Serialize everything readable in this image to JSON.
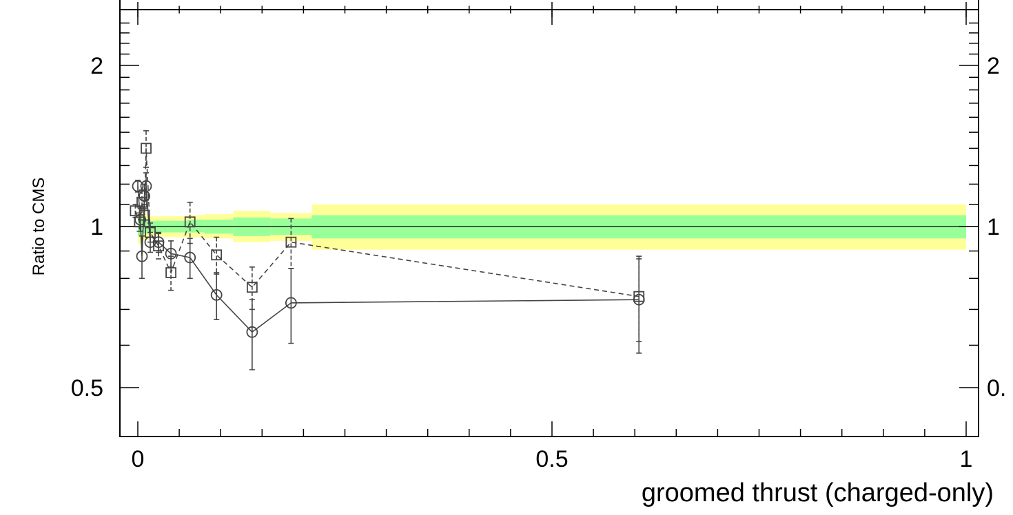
{
  "chart_data": {
    "type": "scatter",
    "xlabel": "groomed thrust (charged-only)",
    "ylabel": "Ratio to CMS",
    "xlim": [
      -0.02,
      1.0
    ],
    "ylim": [
      0.4,
      2.4
    ],
    "y_scale": "log",
    "x_ticks": [
      0,
      0.5,
      1
    ],
    "x_tick_labels": [
      "0",
      "0.5",
      "1"
    ],
    "y_ticks": [
      0.5,
      1,
      2
    ],
    "y_tick_labels": [
      "0.5",
      "1",
      "2"
    ],
    "right_axis_tick_labels": [
      "2",
      "1",
      "0."
    ],
    "reference_line": 1.0,
    "colors": {
      "band_inner": "#99ff99",
      "band_outer": "#ffff99",
      "series": "#444444",
      "axis": "#000000"
    },
    "bands": [
      {
        "x0": 0.0,
        "x1": 0.005,
        "inner": [
          0.96,
          1.04
        ],
        "outer": [
          0.93,
          1.07
        ]
      },
      {
        "x0": 0.005,
        "x1": 0.015,
        "inner": [
          0.97,
          1.03
        ],
        "outer": [
          0.945,
          1.055
        ]
      },
      {
        "x0": 0.015,
        "x1": 0.03,
        "inner": [
          0.975,
          1.025
        ],
        "outer": [
          0.96,
          1.045
        ]
      },
      {
        "x0": 0.03,
        "x1": 0.06,
        "inner": [
          0.975,
          1.025
        ],
        "outer": [
          0.955,
          1.045
        ]
      },
      {
        "x0": 0.06,
        "x1": 0.08,
        "inner": [
          0.975,
          1.03
        ],
        "outer": [
          0.955,
          1.05
        ]
      },
      {
        "x0": 0.08,
        "x1": 0.115,
        "inner": [
          0.97,
          1.03
        ],
        "outer": [
          0.95,
          1.055
        ]
      },
      {
        "x0": 0.115,
        "x1": 0.16,
        "inner": [
          0.96,
          1.04
        ],
        "outer": [
          0.935,
          1.07
        ]
      },
      {
        "x0": 0.16,
        "x1": 0.21,
        "inner": [
          0.965,
          1.035
        ],
        "outer": [
          0.94,
          1.06
        ]
      },
      {
        "x0": 0.21,
        "x1": 1.0,
        "inner": [
          0.95,
          1.05
        ],
        "outer": [
          0.905,
          1.1
        ]
      }
    ],
    "series": [
      {
        "marker": "circle",
        "line": "solid",
        "x": [
          0.0,
          0.003,
          0.005,
          0.008,
          0.01,
          0.015,
          0.025,
          0.04,
          0.063,
          0.095,
          0.138,
          0.185,
          0.605
        ],
        "y": [
          1.19,
          1.03,
          0.88,
          1.14,
          1.19,
          0.935,
          0.935,
          0.89,
          0.875,
          0.745,
          0.635,
          0.72,
          0.73
        ],
        "err": [
          0.03,
          0.05,
          0.08,
          0.06,
          0.07,
          0.04,
          0.04,
          0.05,
          0.075,
          0.075,
          0.095,
          0.115,
          0.15
        ]
      },
      {
        "marker": "square",
        "line": "dashed",
        "x": [
          -0.003,
          0.002,
          0.005,
          0.008,
          0.01,
          0.015,
          0.025,
          0.04,
          0.063,
          0.095,
          0.138,
          0.185,
          0.605
        ],
        "y": [
          1.07,
          1.02,
          1.11,
          1.05,
          1.4,
          0.975,
          0.92,
          0.82,
          1.02,
          0.885,
          0.77,
          0.935,
          0.74
        ],
        "err": [
          0.03,
          0.04,
          0.06,
          0.05,
          0.11,
          0.04,
          0.05,
          0.06,
          0.09,
          0.07,
          0.07,
          0.1,
          0.13
        ]
      }
    ]
  }
}
